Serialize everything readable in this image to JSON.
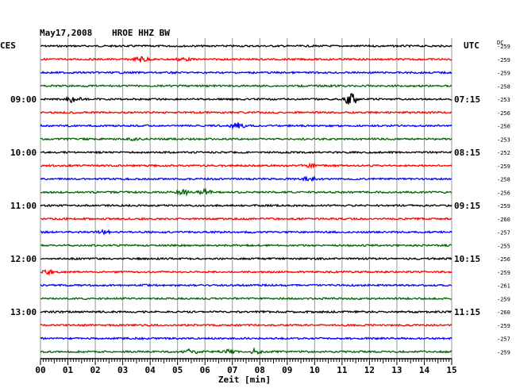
{
  "header": {
    "date": "May17,2008",
    "station": "HROE HHZ BW",
    "left_tz": "CES",
    "right_tz": "UTC",
    "dc_label": "DC"
  },
  "xlabel": "Zeit [min]",
  "colors": {
    "black": "#000000",
    "red": "#ff0000",
    "blue": "#0000ff",
    "green": "#006400",
    "grid": "#999999"
  },
  "chart_data": {
    "type": "line",
    "title": "May17,2008 HROE HHZ BW",
    "xlabel": "Zeit [min]",
    "ylabel": "",
    "xlim": [
      0,
      15
    ],
    "x_ticks": [
      "00",
      "01",
      "02",
      "03",
      "04",
      "05",
      "06",
      "07",
      "08",
      "09",
      "10",
      "11",
      "12",
      "13",
      "14",
      "15"
    ],
    "color_cycle": [
      "#000000",
      "#ff0000",
      "#0000ff",
      "#006400"
    ],
    "left_time_labels": [
      {
        "trace": 4,
        "label": "09:00"
      },
      {
        "trace": 8,
        "label": "10:00"
      },
      {
        "trace": 12,
        "label": "11:00"
      },
      {
        "trace": 16,
        "label": "12:00"
      },
      {
        "trace": 20,
        "label": "13:00"
      }
    ],
    "right_time_labels": [
      {
        "trace": 4,
        "label": "07:15"
      },
      {
        "trace": 8,
        "label": "08:15"
      },
      {
        "trace": 12,
        "label": "09:15"
      },
      {
        "trace": 16,
        "label": "10:15"
      },
      {
        "trace": 20,
        "label": "11:15"
      }
    ],
    "dc_offsets": [
      "-259",
      "-259",
      "-259",
      "-258",
      "-253",
      "-256",
      "-256",
      "-253",
      "-252",
      "-259",
      "-258",
      "-256",
      "-259",
      "-260",
      "-257",
      "-255",
      "-256",
      "-259",
      "-261",
      "-259",
      "-260",
      "-259",
      "-257",
      "-259"
    ],
    "events": [
      {
        "trace": 1,
        "minute": 3.7,
        "amplitude": 4
      },
      {
        "trace": 1,
        "minute": 5.2,
        "amplitude": 2
      },
      {
        "trace": 4,
        "minute": 1.2,
        "amplitude": 4
      },
      {
        "trace": 4,
        "minute": 11.3,
        "amplitude": 9
      },
      {
        "trace": 6,
        "minute": 7.2,
        "amplitude": 4
      },
      {
        "trace": 7,
        "minute": 3.5,
        "amplitude": 2
      },
      {
        "trace": 9,
        "minute": 9.8,
        "amplitude": 3
      },
      {
        "trace": 10,
        "minute": 9.8,
        "amplitude": 4
      },
      {
        "trace": 11,
        "minute": 5.2,
        "amplitude": 3
      },
      {
        "trace": 11,
        "minute": 6.0,
        "amplitude": 3
      },
      {
        "trace": 14,
        "minute": 2.3,
        "amplitude": 2
      },
      {
        "trace": 17,
        "minute": 0.3,
        "amplitude": 2
      },
      {
        "trace": 23,
        "minute": 5.5,
        "amplitude": 3
      },
      {
        "trace": 23,
        "minute": 6.8,
        "amplitude": 3
      },
      {
        "trace": 23,
        "minute": 7.8,
        "amplitude": 3
      }
    ]
  }
}
